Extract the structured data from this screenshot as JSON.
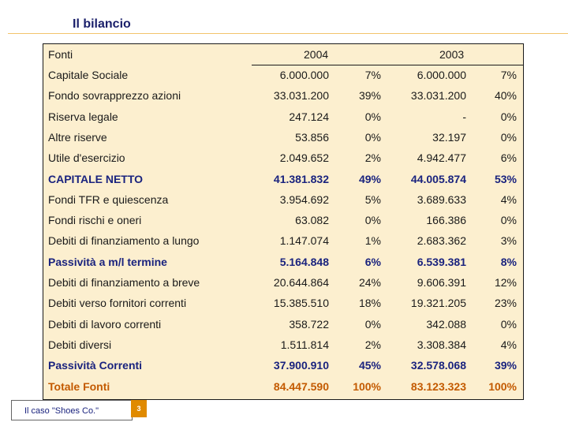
{
  "slide": {
    "title": "Il bilancio",
    "footer_label": "Il caso \"Shoes Co.\"",
    "page_number": "3"
  },
  "table": {
    "headers": {
      "label": "Fonti",
      "year1": "2004",
      "year2": "2003"
    },
    "rows": [
      {
        "label": "Capitale Sociale",
        "v2004": "6.000.000",
        "p2004": "7%",
        "v2003": "6.000.000",
        "p2003": "7%",
        "style": "normal"
      },
      {
        "label": "Fondo sovrapprezzo azioni",
        "v2004": "33.031.200",
        "p2004": "39%",
        "v2003": "33.031.200",
        "p2003": "40%",
        "style": "normal"
      },
      {
        "label": "Riserva legale",
        "v2004": "247.124",
        "p2004": "0%",
        "v2003": "-",
        "p2003": "0%",
        "style": "normal"
      },
      {
        "label": "Altre riserve",
        "v2004": "53.856",
        "p2004": "0%",
        "v2003": "32.197",
        "p2003": "0%",
        "style": "normal"
      },
      {
        "label": "Utile d'esercizio",
        "v2004": "2.049.652",
        "p2004": "2%",
        "v2003": "4.942.477",
        "p2003": "6%",
        "style": "normal"
      },
      {
        "label": "CAPITALE NETTO",
        "v2004": "41.381.832",
        "p2004": "49%",
        "v2003": "44.005.874",
        "p2003": "53%",
        "style": "bold"
      },
      {
        "label": "Fondi TFR e quiescenza",
        "v2004": "3.954.692",
        "p2004": "5%",
        "v2003": "3.689.633",
        "p2003": "4%",
        "style": "normal"
      },
      {
        "label": "Fondi rischi e oneri",
        "v2004": "63.082",
        "p2004": "0%",
        "v2003": "166.386",
        "p2003": "0%",
        "style": "normal"
      },
      {
        "label": "Debiti di finanziamento a lungo",
        "v2004": "1.147.074",
        "p2004": "1%",
        "v2003": "2.683.362",
        "p2003": "3%",
        "style": "normal"
      },
      {
        "label": "Passività a m/l termine",
        "v2004": "5.164.848",
        "p2004": "6%",
        "v2003": "6.539.381",
        "p2003": "8%",
        "style": "bold"
      },
      {
        "label": "Debiti di finanziamento a breve",
        "v2004": "20.644.864",
        "p2004": "24%",
        "v2003": "9.606.391",
        "p2003": "12%",
        "style": "normal"
      },
      {
        "label": "Debiti verso fornitori correnti",
        "v2004": "15.385.510",
        "p2004": "18%",
        "v2003": "19.321.205",
        "p2003": "23%",
        "style": "normal"
      },
      {
        "label": "Debiti di lavoro correnti",
        "v2004": "358.722",
        "p2004": "0%",
        "v2003": "342.088",
        "p2003": "0%",
        "style": "normal"
      },
      {
        "label": "Debiti diversi",
        "v2004": "1.511.814",
        "p2004": "2%",
        "v2003": "3.308.384",
        "p2003": "4%",
        "style": "normal"
      },
      {
        "label": "Passività Correnti",
        "v2004": "37.900.910",
        "p2004": "45%",
        "v2003": "32.578.068",
        "p2003": "39%",
        "style": "bold"
      },
      {
        "label": "Totale Fonti",
        "v2004": "84.447.590",
        "p2004": "100%",
        "v2003": "83.123.323",
        "p2003": "100%",
        "style": "bold-orange"
      }
    ]
  }
}
